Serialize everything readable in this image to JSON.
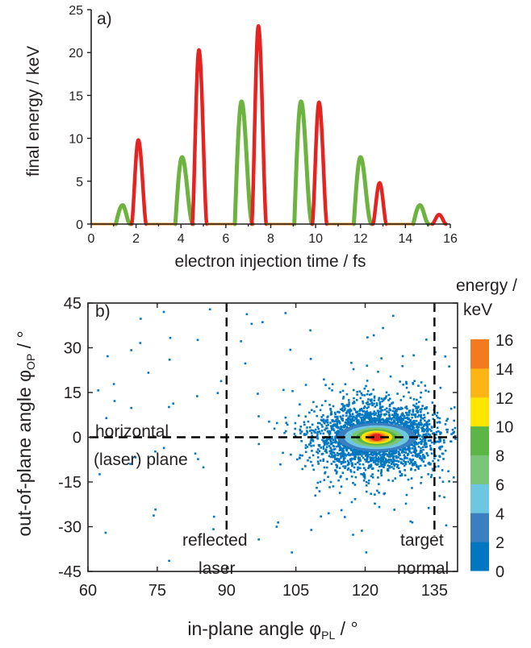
{
  "chart_data": [
    {
      "type": "line",
      "panel_label": "a)",
      "xlabel": "electron injection time / fs",
      "ylabel": "final energy / keV",
      "xlim": [
        0,
        16
      ],
      "ylim": [
        0,
        25
      ],
      "xticks": [
        0,
        2,
        4,
        6,
        8,
        10,
        12,
        14,
        16
      ],
      "yticks": [
        0,
        5,
        10,
        15,
        20,
        25
      ],
      "colors": {
        "green": "#6cb33f",
        "red": "#e52421",
        "orange": "#f18a21",
        "axis": "#231f20"
      },
      "series": [
        {
          "color": "green",
          "peaks": [
            {
              "t_start": 1.1,
              "t_peak": 1.4,
              "t_end": 1.75,
              "e_peak": 2.2
            },
            {
              "t_start": 3.75,
              "t_peak": 4.05,
              "t_end": 4.55,
              "e_peak": 7.8
            },
            {
              "t_start": 6.4,
              "t_peak": 6.7,
              "t_end": 7.2,
              "e_peak": 14.3
            },
            {
              "t_start": 9.05,
              "t_peak": 9.35,
              "t_end": 9.85,
              "e_peak": 14.3
            },
            {
              "t_start": 11.7,
              "t_peak": 12.0,
              "t_end": 12.5,
              "e_peak": 7.8
            },
            {
              "t_start": 14.35,
              "t_peak": 14.65,
              "t_end": 15.05,
              "e_peak": 2.2
            }
          ]
        },
        {
          "color": "red",
          "peaks": [
            {
              "t_start": 1.8,
              "t_peak": 2.1,
              "t_end": 2.45,
              "e_peak": 9.8
            },
            {
              "t_start": 4.5,
              "t_peak": 4.8,
              "t_end": 5.15,
              "e_peak": 20.3
            },
            {
              "t_start": 7.15,
              "t_peak": 7.45,
              "t_end": 7.8,
              "e_peak": 23.1
            },
            {
              "t_start": 9.85,
              "t_peak": 10.15,
              "t_end": 10.5,
              "e_peak": 14.2
            },
            {
              "t_start": 12.55,
              "t_peak": 12.85,
              "t_end": 13.15,
              "e_peak": 4.8
            },
            {
              "t_start": 15.2,
              "t_peak": 15.5,
              "t_end": 15.8,
              "e_peak": 1.1
            }
          ]
        },
        {
          "color": "orange",
          "baseline_segments": [
            [
              0,
              1.1
            ],
            [
              2.45,
              3.75
            ],
            [
              5.15,
              6.4
            ],
            [
              7.8,
              9.05
            ],
            [
              10.5,
              11.7
            ],
            [
              13.15,
              14.35
            ]
          ]
        }
      ]
    },
    {
      "type": "heatmap",
      "panel_label": "b)",
      "xlabel_main": "in-plane angle φ",
      "xlabel_sub": "PL",
      "xlabel_unit": " / °",
      "ylabel_main": "out-of-plane angle φ",
      "ylabel_sub": "OP",
      "ylabel_unit": " / °",
      "xlim": [
        60,
        140
      ],
      "ylim": [
        -45,
        45
      ],
      "xticks": [
        60,
        75,
        90,
        105,
        120,
        135
      ],
      "yticks": [
        45,
        30,
        15,
        0,
        -15,
        -30,
        -45
      ],
      "vlines": [
        90,
        135
      ],
      "hline": 0,
      "colorbar": {
        "title_line1": "energy /",
        "title_line2": "keV",
        "levels": [
          0,
          2,
          4,
          6,
          8,
          10,
          12,
          14,
          16
        ],
        "colors": [
          "#0077c0",
          "#3c7fc1",
          "#6dc7e1",
          "#79c67b",
          "#5cb646",
          "#ffe600",
          "#fbb515",
          "#f37a1f",
          "#e52421"
        ]
      },
      "density_center": [
        122.5,
        0
      ],
      "scatter_color": "#0077c0",
      "annotations": [
        {
          "line1": "horizontal",
          "line2": "(laser) plane"
        },
        {
          "line1": "reflected",
          "line2": "laser"
        },
        {
          "line1": "target",
          "line2": "normal"
        }
      ]
    }
  ]
}
